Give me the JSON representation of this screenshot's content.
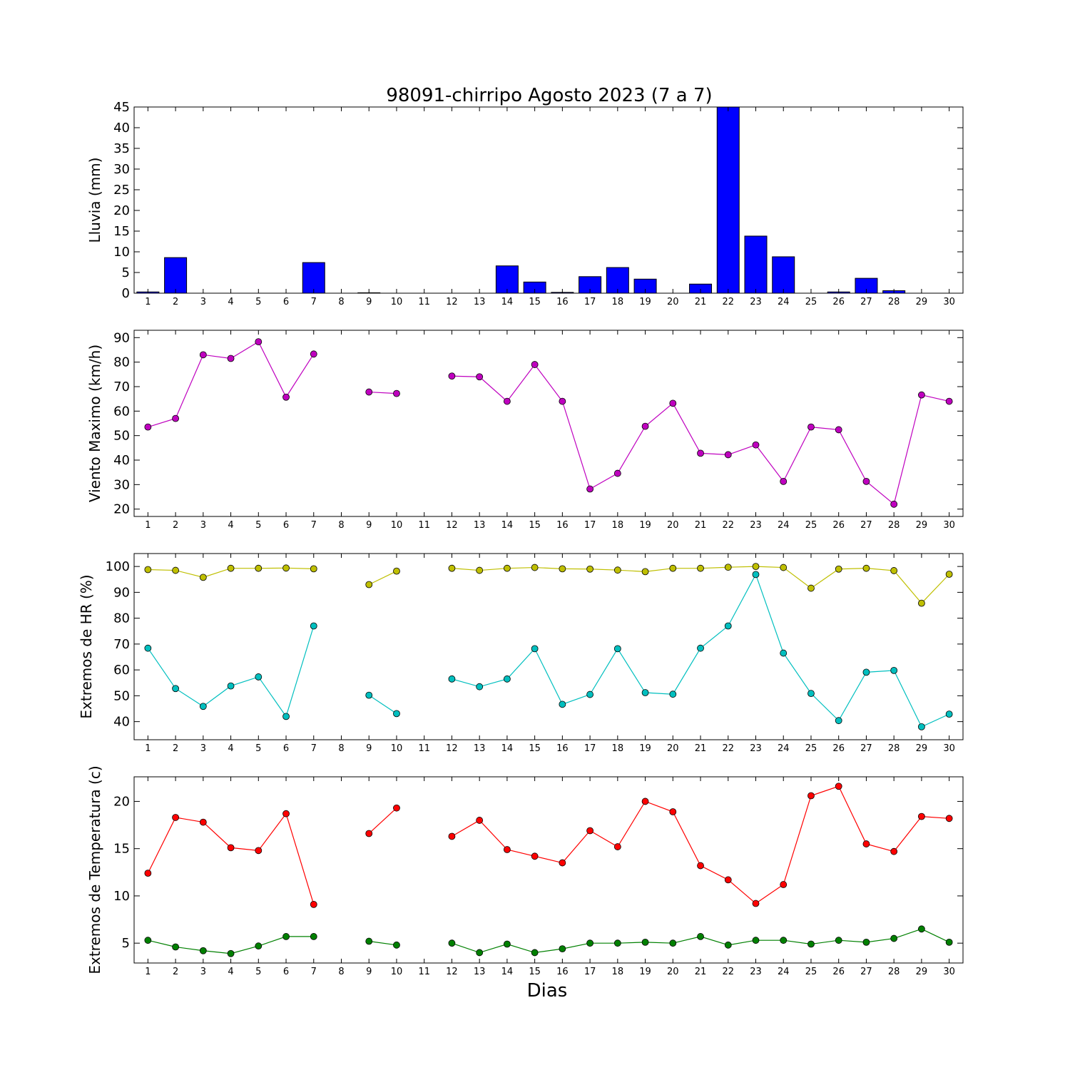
{
  "title": "98091-chirripo Agosto 2023  (7 a 7)",
  "chart_data": [
    {
      "type": "bar",
      "name": "lluvia",
      "ylabel": "Lluvia (mm)",
      "xlabel": "",
      "ylim": [
        0,
        45
      ],
      "yticks": [
        0,
        5,
        10,
        15,
        20,
        25,
        30,
        35,
        40,
        45
      ],
      "categories": [
        1,
        2,
        3,
        4,
        5,
        6,
        7,
        8,
        9,
        10,
        11,
        12,
        13,
        14,
        15,
        16,
        17,
        18,
        19,
        20,
        21,
        22,
        23,
        24,
        25,
        26,
        27,
        28,
        29,
        30
      ],
      "series": [
        {
          "color": "#0000ff",
          "values": [
            0.3,
            8.6,
            0,
            0,
            0,
            0,
            7.4,
            null,
            0.1,
            0,
            0,
            0,
            0,
            6.6,
            2.7,
            0.2,
            4.0,
            6.2,
            3.4,
            0,
            2.2,
            45,
            13.8,
            8.8,
            0,
            0.3,
            3.6,
            0.6,
            0,
            0
          ]
        }
      ]
    },
    {
      "type": "line",
      "name": "viento",
      "ylabel": "Viento Maximo (km/h)",
      "xlabel": "",
      "ylim": [
        17,
        93
      ],
      "yticks": [
        20,
        30,
        40,
        50,
        60,
        70,
        80,
        90
      ],
      "x": [
        1,
        2,
        3,
        4,
        5,
        6,
        7,
        8,
        9,
        10,
        11,
        12,
        13,
        14,
        15,
        16,
        17,
        18,
        19,
        20,
        21,
        22,
        23,
        24,
        25,
        26,
        27,
        28,
        29,
        30
      ],
      "series": [
        {
          "color": "#bf00bf",
          "values": [
            53.5,
            57,
            83,
            81.5,
            88.3,
            65.7,
            83.3,
            null,
            67.8,
            67.2,
            null,
            74.3,
            74,
            64,
            79,
            64,
            28.2,
            34.6,
            53.8,
            63.2,
            42.8,
            42.2,
            46.2,
            31.3,
            53.5,
            52.4,
            31.3,
            22,
            66.6,
            64
          ]
        }
      ]
    },
    {
      "type": "line",
      "name": "humedad",
      "ylabel": "Extremos de HR (%)",
      "xlabel": "",
      "ylim": [
        33,
        105
      ],
      "yticks": [
        40,
        50,
        60,
        70,
        80,
        90,
        100
      ],
      "x": [
        1,
        2,
        3,
        4,
        5,
        6,
        7,
        8,
        9,
        10,
        11,
        12,
        13,
        14,
        15,
        16,
        17,
        18,
        19,
        20,
        21,
        22,
        23,
        24,
        25,
        26,
        27,
        28,
        29,
        30
      ],
      "series": [
        {
          "color": "#bfbf00",
          "values": [
            98.8,
            98.5,
            95.8,
            99.3,
            99.3,
            99.4,
            99.1,
            null,
            93,
            98.2,
            null,
            99.3,
            98.5,
            99.3,
            99.6,
            99.1,
            99,
            98.6,
            98,
            99.3,
            99.3,
            99.7,
            100,
            99.6,
            91.6,
            99,
            99.3,
            98.4,
            85.8,
            97
          ]
        },
        {
          "color": "#00bfbf",
          "values": [
            68.4,
            52.8,
            45.9,
            53.8,
            57.3,
            42,
            77,
            null,
            50.2,
            43.1,
            null,
            56.5,
            53.5,
            56.5,
            68.2,
            46.7,
            50.5,
            68.2,
            51.2,
            50.6,
            68.4,
            77,
            96.9,
            66.5,
            50.9,
            40.4,
            59.1,
            59.8,
            38,
            42.9
          ]
        }
      ]
    },
    {
      "type": "line",
      "name": "temperatura",
      "ylabel": "Extremos de Temperatura (c)",
      "xlabel": "Dias",
      "ylim": [
        2.9,
        22.6
      ],
      "yticks": [
        5,
        10,
        15,
        20
      ],
      "x": [
        1,
        2,
        3,
        4,
        5,
        6,
        7,
        8,
        9,
        10,
        11,
        12,
        13,
        14,
        15,
        16,
        17,
        18,
        19,
        20,
        21,
        22,
        23,
        24,
        25,
        26,
        27,
        28,
        29,
        30
      ],
      "series": [
        {
          "color": "#ff0000",
          "values": [
            12.4,
            18.3,
            17.8,
            15.1,
            14.8,
            18.7,
            9.1,
            null,
            16.6,
            19.3,
            null,
            16.3,
            18,
            14.9,
            14.2,
            13.5,
            16.9,
            15.2,
            20,
            18.9,
            13.2,
            11.7,
            9.2,
            11.2,
            20.6,
            21.6,
            15.5,
            14.7,
            18.4,
            18.2
          ]
        },
        {
          "color": "#008000",
          "values": [
            5.3,
            4.6,
            4.2,
            3.9,
            4.7,
            5.7,
            5.7,
            null,
            5.2,
            4.8,
            null,
            5,
            4,
            4.9,
            4,
            4.4,
            5,
            5,
            5.1,
            5,
            5.7,
            4.8,
            5.3,
            5.3,
            4.9,
            5.3,
            5.1,
            5.5,
            6.5,
            5.1
          ]
        }
      ]
    }
  ]
}
